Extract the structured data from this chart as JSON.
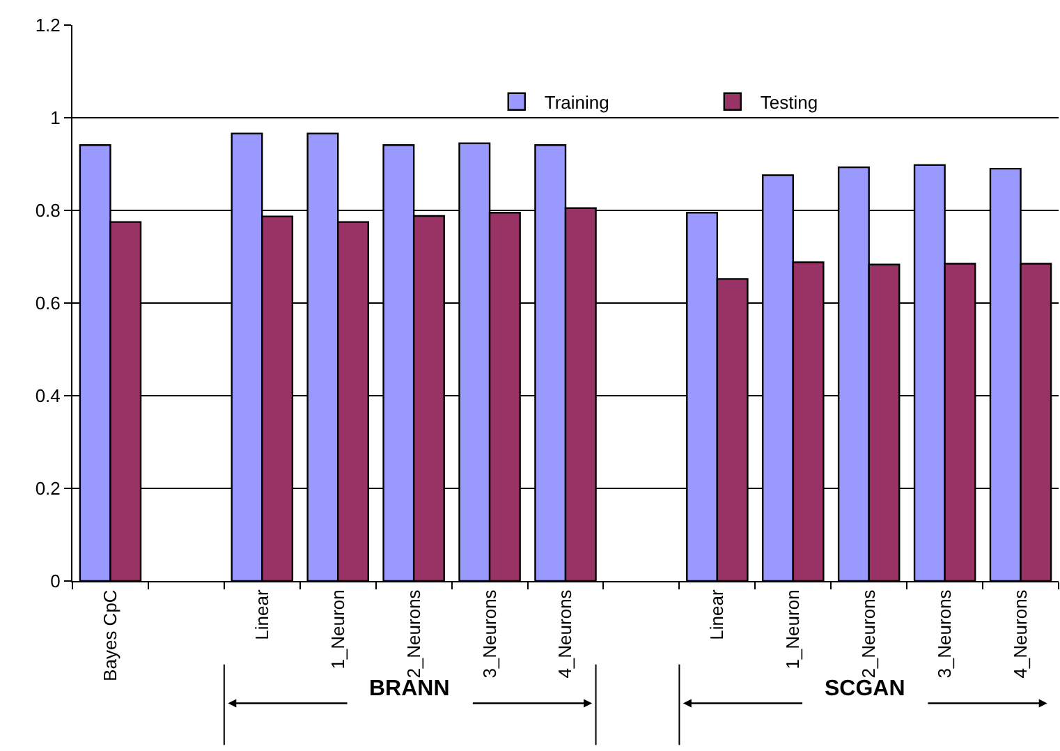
{
  "chart_data": {
    "type": "bar",
    "categories": [
      "Bayes CpC",
      null,
      "Linear",
      "1_Neuron",
      "2_Neurons",
      "3_Neurons",
      "4_Neurons",
      null,
      "Linear",
      "1_Neuron",
      "2_Neurons",
      "3_Neurons",
      "4_Neurons"
    ],
    "series": [
      {
        "name": "Training",
        "color": "#9999ff",
        "values": [
          0.941,
          null,
          0.966,
          0.966,
          0.941,
          0.945,
          0.941,
          null,
          0.795,
          0.876,
          0.893,
          0.898,
          0.89
        ]
      },
      {
        "name": "Testing",
        "color": "#993366",
        "values": [
          0.775,
          null,
          0.787,
          0.775,
          0.788,
          0.795,
          0.805,
          null,
          0.652,
          0.688,
          0.683,
          0.685,
          0.685
        ]
      }
    ],
    "ylim": [
      0,
      1.2
    ],
    "yticks": [
      0,
      0.2,
      0.4,
      0.6,
      0.8,
      1,
      1.2
    ],
    "grid": "y",
    "legend": "top right",
    "annotations": [
      "BRANN",
      "SCGAN"
    ]
  }
}
